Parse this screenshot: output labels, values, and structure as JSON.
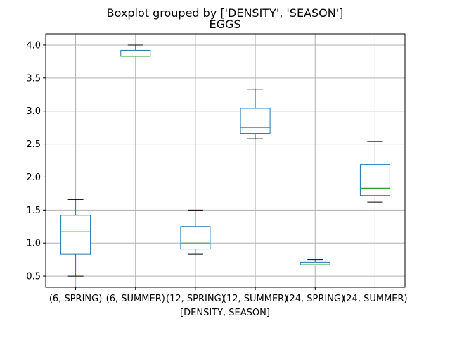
{
  "chart_data": {
    "type": "boxplot",
    "suptitle": "Boxplot grouped by ['DENSITY', 'SEASON']",
    "title": "EGGS",
    "xlabel": "[DENSITY, SEASON]",
    "ylabel": "",
    "ylim": [
      0.33,
      4.17
    ],
    "yticks": [
      0.5,
      1.0,
      1.5,
      2.0,
      2.5,
      3.0,
      3.5,
      4.0
    ],
    "ytick_labels": [
      "0.5",
      "1.0",
      "1.5",
      "2.0",
      "2.5",
      "3.0",
      "3.5",
      "4.0"
    ],
    "categories": [
      "(6, SPRING)",
      "(6, SUMMER)",
      "(12, SPRING)",
      "(12, SUMMER)",
      "(24, SPRING)",
      "(24, SUMMER)"
    ],
    "boxes": [
      {
        "whislo": 0.5,
        "q1": 0.83,
        "med": 1.17,
        "q3": 1.42,
        "whishi": 1.66
      },
      {
        "whislo": 3.83,
        "q1": 3.83,
        "med": 3.83,
        "q3": 3.92,
        "whishi": 4.0
      },
      {
        "whislo": 0.83,
        "q1": 0.91,
        "med": 1.0,
        "q3": 1.25,
        "whishi": 1.5
      },
      {
        "whislo": 2.58,
        "q1": 2.66,
        "med": 2.75,
        "q3": 3.04,
        "whishi": 3.33
      },
      {
        "whislo": 0.67,
        "q1": 0.67,
        "med": 0.67,
        "q3": 0.71,
        "whishi": 0.75
      },
      {
        "whislo": 1.62,
        "q1": 1.72,
        "med": 1.83,
        "q3": 2.19,
        "whishi": 2.54
      }
    ],
    "grid": true,
    "colors": {
      "box": "#1f77b4",
      "median": "#2ca02c",
      "cap": "#000000",
      "grid": "#b0b0b0"
    }
  }
}
